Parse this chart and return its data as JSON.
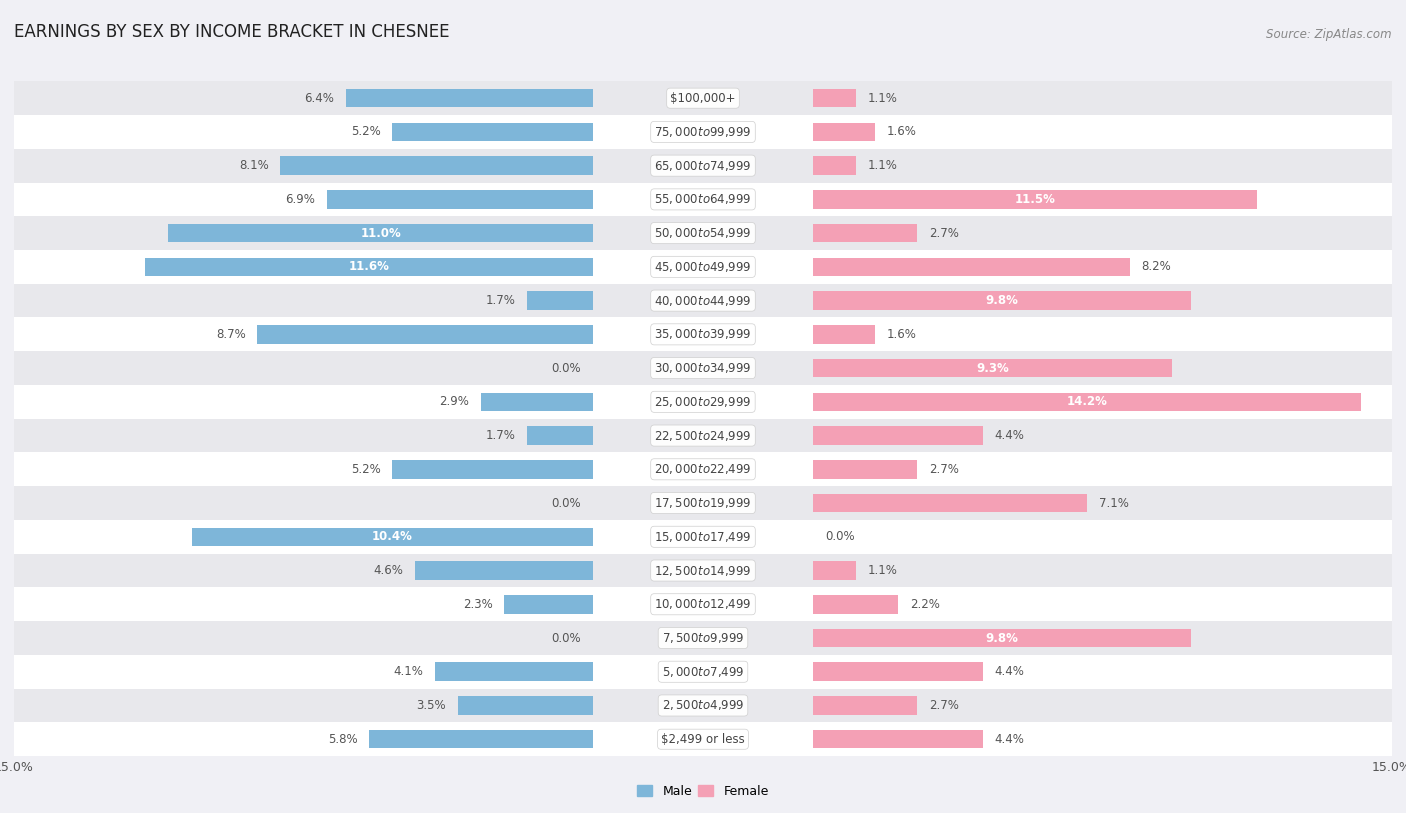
{
  "title": "EARNINGS BY SEX BY INCOME BRACKET IN CHESNEE",
  "source": "Source: ZipAtlas.com",
  "categories": [
    "$2,499 or less",
    "$2,500 to $4,999",
    "$5,000 to $7,499",
    "$7,500 to $9,999",
    "$10,000 to $12,499",
    "$12,500 to $14,999",
    "$15,000 to $17,499",
    "$17,500 to $19,999",
    "$20,000 to $22,499",
    "$22,500 to $24,999",
    "$25,000 to $29,999",
    "$30,000 to $34,999",
    "$35,000 to $39,999",
    "$40,000 to $44,999",
    "$45,000 to $49,999",
    "$50,000 to $54,999",
    "$55,000 to $64,999",
    "$65,000 to $74,999",
    "$75,000 to $99,999",
    "$100,000+"
  ],
  "male_values": [
    5.8,
    3.5,
    4.1,
    0.0,
    2.3,
    4.6,
    10.4,
    0.0,
    5.2,
    1.7,
    2.9,
    0.0,
    8.7,
    1.7,
    11.6,
    11.0,
    6.9,
    8.1,
    5.2,
    6.4
  ],
  "female_values": [
    4.4,
    2.7,
    4.4,
    9.8,
    2.2,
    1.1,
    0.0,
    7.1,
    2.7,
    4.4,
    14.2,
    9.3,
    1.6,
    9.8,
    8.2,
    2.7,
    11.5,
    1.1,
    1.6,
    1.1
  ],
  "male_color": "#7eb6d9",
  "female_color": "#f4a0b5",
  "row_colors": [
    "#ffffff",
    "#e8e8ec"
  ],
  "bg_color": "#f0f0f5",
  "axis_limit": 15.0,
  "title_fontsize": 12,
  "label_fontsize": 9,
  "category_fontsize": 8.5,
  "source_fontsize": 8.5,
  "legend_fontsize": 9,
  "value_fontsize": 8.5,
  "bar_height": 0.55
}
